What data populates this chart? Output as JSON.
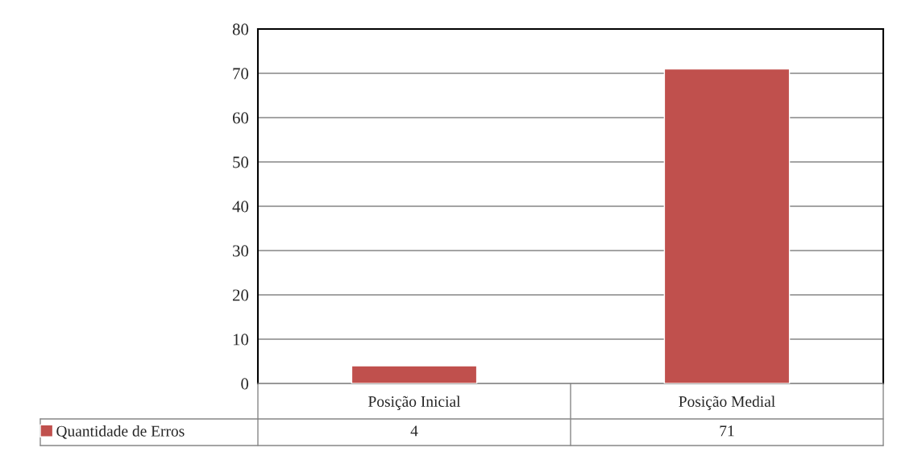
{
  "chart_data": {
    "type": "bar",
    "categories": [
      "Posição Inicial",
      "Posição Medial"
    ],
    "series": [
      {
        "name": "Quantidade de Erros",
        "color": "#c0504d",
        "values": [
          4,
          71
        ]
      }
    ],
    "ylim": [
      0,
      80
    ],
    "yticks": [
      0,
      10,
      20,
      30,
      40,
      50,
      60,
      70,
      80
    ],
    "grid": "y",
    "legend": "bottom left",
    "data_labels": true
  }
}
